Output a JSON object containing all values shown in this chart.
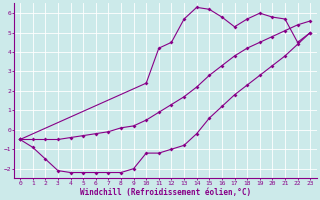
{
  "xlabel": "Windchill (Refroidissement éolien,°C)",
  "bg_color": "#cceaea",
  "grid_color": "#b0d8d8",
  "line_color": "#880088",
  "ylim": [
    -2.5,
    6.5
  ],
  "xlim": [
    -0.5,
    23.5
  ],
  "yticks": [
    -2,
    -1,
    0,
    1,
    2,
    3,
    4,
    5,
    6
  ],
  "xticks": [
    0,
    1,
    2,
    3,
    4,
    5,
    6,
    7,
    8,
    9,
    10,
    11,
    12,
    13,
    14,
    15,
    16,
    17,
    18,
    19,
    20,
    21,
    22,
    23
  ],
  "line1_x": [
    0,
    1,
    2,
    3,
    4,
    5,
    6,
    7,
    8,
    9,
    10,
    11,
    12,
    13,
    14,
    15,
    16,
    17,
    18,
    19,
    20,
    21,
    22,
    23
  ],
  "line1_y": [
    -0.5,
    -0.5,
    -0.5,
    -0.5,
    -0.4,
    -0.3,
    -0.2,
    -0.1,
    0.1,
    0.2,
    0.5,
    0.9,
    1.3,
    1.7,
    2.2,
    2.8,
    3.3,
    3.8,
    4.2,
    4.5,
    4.8,
    5.1,
    5.4,
    5.6
  ],
  "line2_x": [
    0,
    1,
    2,
    3,
    4,
    5,
    6,
    7,
    8,
    9,
    10,
    11,
    12,
    13,
    14,
    15,
    16,
    17,
    18,
    19,
    20,
    21,
    22,
    23
  ],
  "line2_y": [
    -0.5,
    -0.9,
    -1.5,
    -2.1,
    -2.2,
    -2.2,
    -2.2,
    -2.2,
    -2.2,
    -2.0,
    -1.2,
    -1.2,
    -1.0,
    -0.8,
    -0.2,
    0.6,
    1.2,
    1.8,
    2.3,
    2.8,
    3.3,
    3.8,
    4.4,
    5.0
  ],
  "line3_x": [
    0,
    10,
    11,
    12,
    13,
    14,
    15,
    16,
    17,
    18,
    19,
    20,
    21,
    22,
    23
  ],
  "line3_y": [
    -0.5,
    2.4,
    4.2,
    4.5,
    5.7,
    6.3,
    6.2,
    5.8,
    5.3,
    5.7,
    6.0,
    5.8,
    5.7,
    4.5,
    5.0
  ]
}
